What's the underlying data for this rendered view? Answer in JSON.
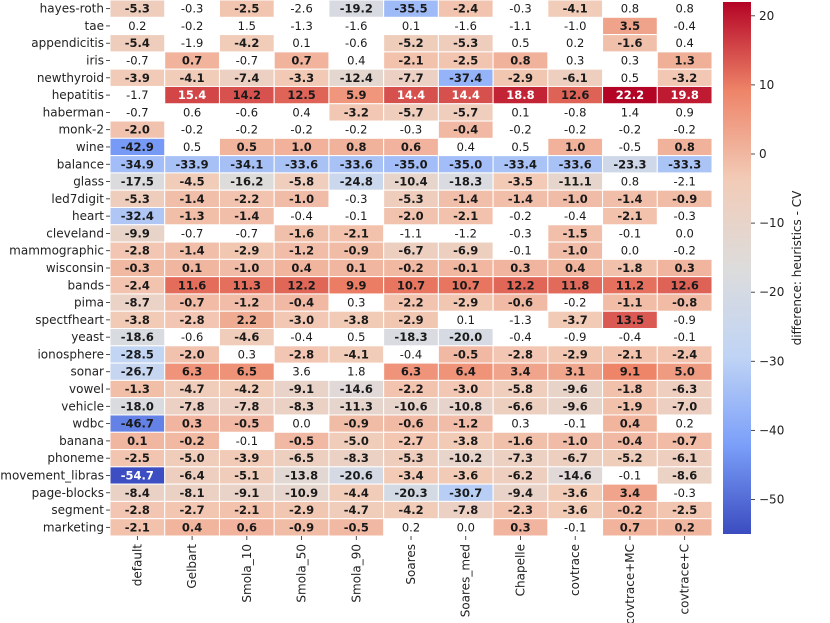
{
  "chart_data": {
    "type": "heatmap",
    "title": "",
    "xlabel": "",
    "ylabel": "",
    "colorbar_label": "difference: heuristics - CV",
    "colorbar_range": [
      -55,
      22
    ],
    "colorbar_ticks": [
      20,
      10,
      0,
      -10,
      -20,
      -30,
      -40,
      -50
    ],
    "colormap": [
      "#3b4cc0",
      "#7b9ff9",
      "#c0d4f5",
      "#dddcdc",
      "#f2cbb7",
      "#ee8468",
      "#b40426"
    ],
    "columns": [
      "default",
      "Gelbart",
      "Smola_10",
      "Smola_50",
      "Smola_90",
      "Soares",
      "Soares_med",
      "Chapelle",
      "covtrace",
      "covtrace+MC",
      "covtrace+C"
    ],
    "rows": [
      "hayes-roth",
      "tae",
      "appendicitis",
      "iris",
      "newthyroid",
      "hepatitis",
      "haberman",
      "monk-2",
      "wine",
      "balance",
      "glass",
      "led7digit",
      "heart",
      "cleveland",
      "mammographic",
      "wisconsin",
      "bands",
      "pima",
      "spectfheart",
      "yeast",
      "ionosphere",
      "sonar",
      "vowel",
      "vehicle",
      "wdbc",
      "banana",
      "phoneme",
      "movement_libras",
      "page-blocks",
      "segment",
      "marketing"
    ],
    "values": [
      [
        -5.3,
        -0.3,
        -2.5,
        -2.6,
        -19.2,
        -35.5,
        -2.4,
        -0.3,
        -4.1,
        0.8,
        0.8
      ],
      [
        0.2,
        -0.2,
        1.5,
        -1.3,
        -1.6,
        0.1,
        -1.6,
        -1.1,
        -1.0,
        3.5,
        -0.4
      ],
      [
        -5.4,
        -1.9,
        -4.2,
        0.1,
        -0.6,
        -5.2,
        -5.3,
        0.5,
        0.2,
        -1.6,
        0.4
      ],
      [
        -0.7,
        0.7,
        -0.7,
        0.7,
        0.4,
        -2.1,
        -2.5,
        0.8,
        0.3,
        0.3,
        1.3
      ],
      [
        -3.9,
        -4.1,
        -7.4,
        -3.3,
        -12.4,
        -7.7,
        -37.4,
        -2.9,
        -6.1,
        0.5,
        -3.2
      ],
      [
        -1.7,
        15.4,
        14.2,
        12.5,
        5.9,
        14.4,
        14.4,
        18.8,
        12.6,
        22.2,
        19.8
      ],
      [
        -0.7,
        0.6,
        -0.6,
        0.4,
        -3.2,
        -5.7,
        -5.7,
        0.1,
        -0.8,
        1.4,
        0.9
      ],
      [
        -2.0,
        -0.2,
        -0.2,
        -0.2,
        -0.2,
        -0.3,
        -0.4,
        -0.2,
        -0.2,
        -0.2,
        -0.2
      ],
      [
        -42.9,
        0.5,
        0.5,
        1.0,
        0.8,
        0.6,
        0.4,
        0.5,
        1.0,
        -0.5,
        0.8
      ],
      [
        -34.9,
        -33.9,
        -34.1,
        -33.6,
        -33.6,
        -35.0,
        -35.0,
        -33.4,
        -33.6,
        -23.3,
        -33.3
      ],
      [
        -17.5,
        -4.5,
        -16.2,
        -5.8,
        -24.8,
        -10.4,
        -18.3,
        -3.5,
        -11.1,
        0.8,
        -2.1
      ],
      [
        -5.3,
        -1.4,
        -2.2,
        -1.0,
        -0.3,
        -5.3,
        -1.4,
        -1.4,
        -1.0,
        -1.4,
        -0.9
      ],
      [
        -32.4,
        -1.3,
        -1.4,
        -0.4,
        -0.1,
        -2.0,
        -2.1,
        -0.2,
        -0.4,
        -2.1,
        -0.3
      ],
      [
        -9.9,
        -0.7,
        -0.7,
        -1.6,
        -2.1,
        -1.1,
        -1.2,
        -0.3,
        -1.5,
        -0.1,
        0.0
      ],
      [
        -2.8,
        -1.4,
        -2.9,
        -1.2,
        -0.9,
        -6.7,
        -6.9,
        -0.1,
        -1.0,
        -0.0,
        -0.2
      ],
      [
        -0.3,
        0.1,
        -1.0,
        0.4,
        0.1,
        -0.2,
        -0.1,
        0.3,
        0.4,
        -1.8,
        0.3
      ],
      [
        -2.4,
        11.6,
        11.3,
        12.2,
        9.9,
        10.7,
        10.7,
        12.2,
        11.8,
        11.2,
        12.6
      ],
      [
        -8.7,
        -0.7,
        -1.2,
        -0.4,
        0.3,
        -2.2,
        -2.9,
        -0.6,
        -0.2,
        -1.1,
        -0.8
      ],
      [
        -3.8,
        -2.8,
        2.2,
        -3.0,
        -3.8,
        -2.9,
        0.1,
        -1.3,
        -3.7,
        13.5,
        -0.9
      ],
      [
        -18.6,
        -0.6,
        -4.6,
        -0.4,
        0.5,
        -18.3,
        -20.0,
        -0.4,
        -0.9,
        -0.4,
        -0.1
      ],
      [
        -28.5,
        -2.0,
        0.3,
        -2.8,
        -4.1,
        -0.4,
        -0.5,
        -2.8,
        -2.9,
        -2.1,
        -2.4
      ],
      [
        -26.7,
        6.3,
        6.5,
        3.6,
        1.8,
        6.3,
        6.4,
        3.4,
        3.1,
        9.1,
        5.0
      ],
      [
        -1.3,
        -4.7,
        -4.2,
        -9.1,
        -14.6,
        -2.2,
        -3.0,
        -5.8,
        -9.6,
        -1.8,
        -6.3
      ],
      [
        -18.0,
        -7.8,
        -7.8,
        -8.3,
        -11.3,
        -10.6,
        -10.8,
        -6.6,
        -9.6,
        -1.9,
        -7.0
      ],
      [
        -46.7,
        0.3,
        -0.5,
        0.0,
        -0.9,
        -0.6,
        -1.2,
        0.3,
        -0.1,
        0.4,
        0.2
      ],
      [
        0.1,
        -0.2,
        -0.1,
        -0.5,
        -5.0,
        -2.7,
        -3.8,
        -1.6,
        -1.0,
        -0.4,
        -0.7
      ],
      [
        -2.5,
        -5.0,
        -3.9,
        -6.5,
        -8.3,
        -5.3,
        -10.2,
        -7.3,
        -6.7,
        -5.2,
        -6.1
      ],
      [
        -54.7,
        -6.4,
        -5.1,
        -13.8,
        -20.6,
        -3.4,
        -3.6,
        -6.2,
        -14.6,
        -0.1,
        -8.6
      ],
      [
        -8.4,
        -8.1,
        -9.1,
        -10.9,
        -4.4,
        -20.3,
        -30.7,
        -9.4,
        -3.6,
        3.4,
        -0.3
      ],
      [
        -2.8,
        -2.7,
        -2.1,
        -2.9,
        -4.7,
        -4.2,
        -7.8,
        -2.3,
        -3.6,
        -0.2,
        -2.5
      ],
      [
        -2.1,
        0.4,
        0.6,
        -0.9,
        -0.5,
        0.2,
        0.0,
        0.3,
        -0.1,
        0.7,
        0.2
      ]
    ],
    "bold": [
      [
        1,
        0,
        1,
        0,
        1,
        1,
        1,
        0,
        1,
        0,
        0
      ],
      [
        0,
        0,
        0,
        0,
        0,
        0,
        0,
        0,
        0,
        1,
        0
      ],
      [
        1,
        0,
        1,
        0,
        0,
        1,
        1,
        0,
        0,
        1,
        0
      ],
      [
        0,
        1,
        0,
        1,
        0,
        1,
        1,
        1,
        0,
        0,
        1
      ],
      [
        1,
        1,
        1,
        1,
        1,
        1,
        1,
        1,
        1,
        0,
        1
      ],
      [
        0,
        1,
        1,
        1,
        1,
        1,
        1,
        1,
        1,
        1,
        1
      ],
      [
        0,
        0,
        0,
        0,
        1,
        1,
        1,
        0,
        0,
        0,
        0
      ],
      [
        1,
        0,
        0,
        0,
        0,
        0,
        1,
        0,
        0,
        0,
        0
      ],
      [
        1,
        0,
        1,
        1,
        1,
        1,
        0,
        0,
        1,
        0,
        1
      ],
      [
        1,
        1,
        1,
        1,
        1,
        1,
        1,
        1,
        1,
        1,
        1
      ],
      [
        1,
        1,
        1,
        1,
        1,
        1,
        1,
        1,
        1,
        0,
        0
      ],
      [
        1,
        1,
        1,
        1,
        0,
        1,
        1,
        1,
        1,
        1,
        1
      ],
      [
        1,
        1,
        1,
        0,
        0,
        1,
        1,
        0,
        0,
        1,
        0
      ],
      [
        1,
        0,
        0,
        1,
        1,
        0,
        0,
        0,
        1,
        0,
        0
      ],
      [
        1,
        1,
        1,
        1,
        1,
        1,
        1,
        0,
        1,
        0,
        0
      ],
      [
        1,
        1,
        1,
        1,
        1,
        1,
        1,
        1,
        1,
        1,
        1
      ],
      [
        1,
        1,
        1,
        1,
        1,
        1,
        1,
        1,
        1,
        1,
        1
      ],
      [
        1,
        1,
        1,
        1,
        0,
        1,
        1,
        1,
        0,
        1,
        1
      ],
      [
        1,
        1,
        1,
        1,
        1,
        1,
        0,
        0,
        1,
        1,
        0
      ],
      [
        1,
        0,
        1,
        0,
        0,
        1,
        1,
        0,
        0,
        0,
        0
      ],
      [
        1,
        1,
        0,
        1,
        1,
        0,
        1,
        1,
        1,
        1,
        1
      ],
      [
        1,
        1,
        1,
        0,
        0,
        1,
        1,
        1,
        1,
        1,
        1
      ],
      [
        1,
        1,
        1,
        1,
        1,
        1,
        1,
        1,
        1,
        1,
        1
      ],
      [
        1,
        1,
        1,
        1,
        1,
        1,
        1,
        1,
        1,
        1,
        1
      ],
      [
        1,
        1,
        1,
        0,
        1,
        1,
        1,
        0,
        0,
        1,
        0
      ],
      [
        1,
        1,
        0,
        1,
        1,
        1,
        1,
        1,
        1,
        1,
        1
      ],
      [
        1,
        1,
        1,
        1,
        1,
        1,
        1,
        1,
        1,
        1,
        1
      ],
      [
        1,
        1,
        1,
        1,
        1,
        1,
        1,
        1,
        1,
        0,
        1
      ],
      [
        1,
        1,
        1,
        1,
        1,
        1,
        1,
        1,
        1,
        1,
        0
      ],
      [
        1,
        1,
        1,
        1,
        1,
        1,
        1,
        1,
        1,
        1,
        1
      ],
      [
        1,
        1,
        1,
        1,
        1,
        0,
        0,
        1,
        0,
        1,
        1
      ]
    ]
  }
}
